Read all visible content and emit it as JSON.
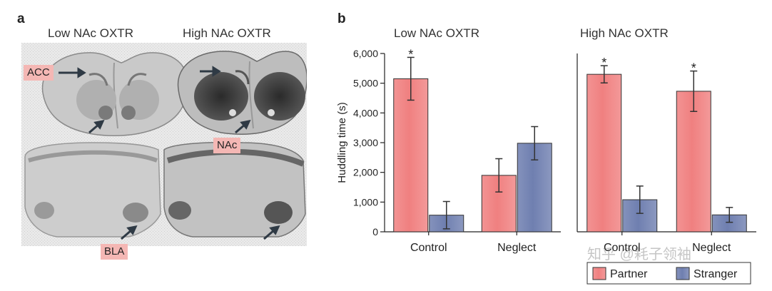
{
  "panel_a": {
    "letter": "a",
    "titles": [
      "Low NAc OXTR",
      "High NAc OXTR"
    ],
    "labels": {
      "acc": "ACC",
      "nac": "NAc",
      "bla": "BLA"
    }
  },
  "panel_b": {
    "letter": "b"
  },
  "watermark": "知乎 @耗子领袖",
  "colors": {
    "partner": "#f08080",
    "stranger": "#6f7fb0",
    "label_bg": "#f4b7b4"
  },
  "chart_data": {
    "type": "bar",
    "ylabel": "Huddling time (s)",
    "ylim": [
      0,
      6000
    ],
    "yticks": [
      0,
      1000,
      2000,
      3000,
      4000,
      5000,
      6000
    ],
    "ytick_labels": [
      "0",
      "1,000",
      "2,000",
      "3,000",
      "4,000",
      "5,000",
      "6,000"
    ],
    "legend": {
      "position": "bottom-right",
      "entries": [
        "Partner",
        "Stranger"
      ]
    },
    "subplots": [
      {
        "title": "Low NAc OXTR",
        "categories": [
          "Control",
          "Neglect"
        ],
        "series": [
          {
            "name": "Partner",
            "values": [
              5150,
              1900
            ],
            "errors": [
              720,
              560
            ]
          },
          {
            "name": "Stranger",
            "values": [
              560,
              2980
            ],
            "errors": [
              460,
              560
            ]
          }
        ],
        "significance": [
          "*",
          ""
        ]
      },
      {
        "title": "High NAc OXTR",
        "categories": [
          "Control",
          "Neglect"
        ],
        "series": [
          {
            "name": "Partner",
            "values": [
              5300,
              4730
            ],
            "errors": [
              290,
              680
            ]
          },
          {
            "name": "Stranger",
            "values": [
              1080,
              570
            ],
            "errors": [
              460,
              250
            ]
          }
        ],
        "significance": [
          "*",
          "*"
        ]
      }
    ]
  }
}
